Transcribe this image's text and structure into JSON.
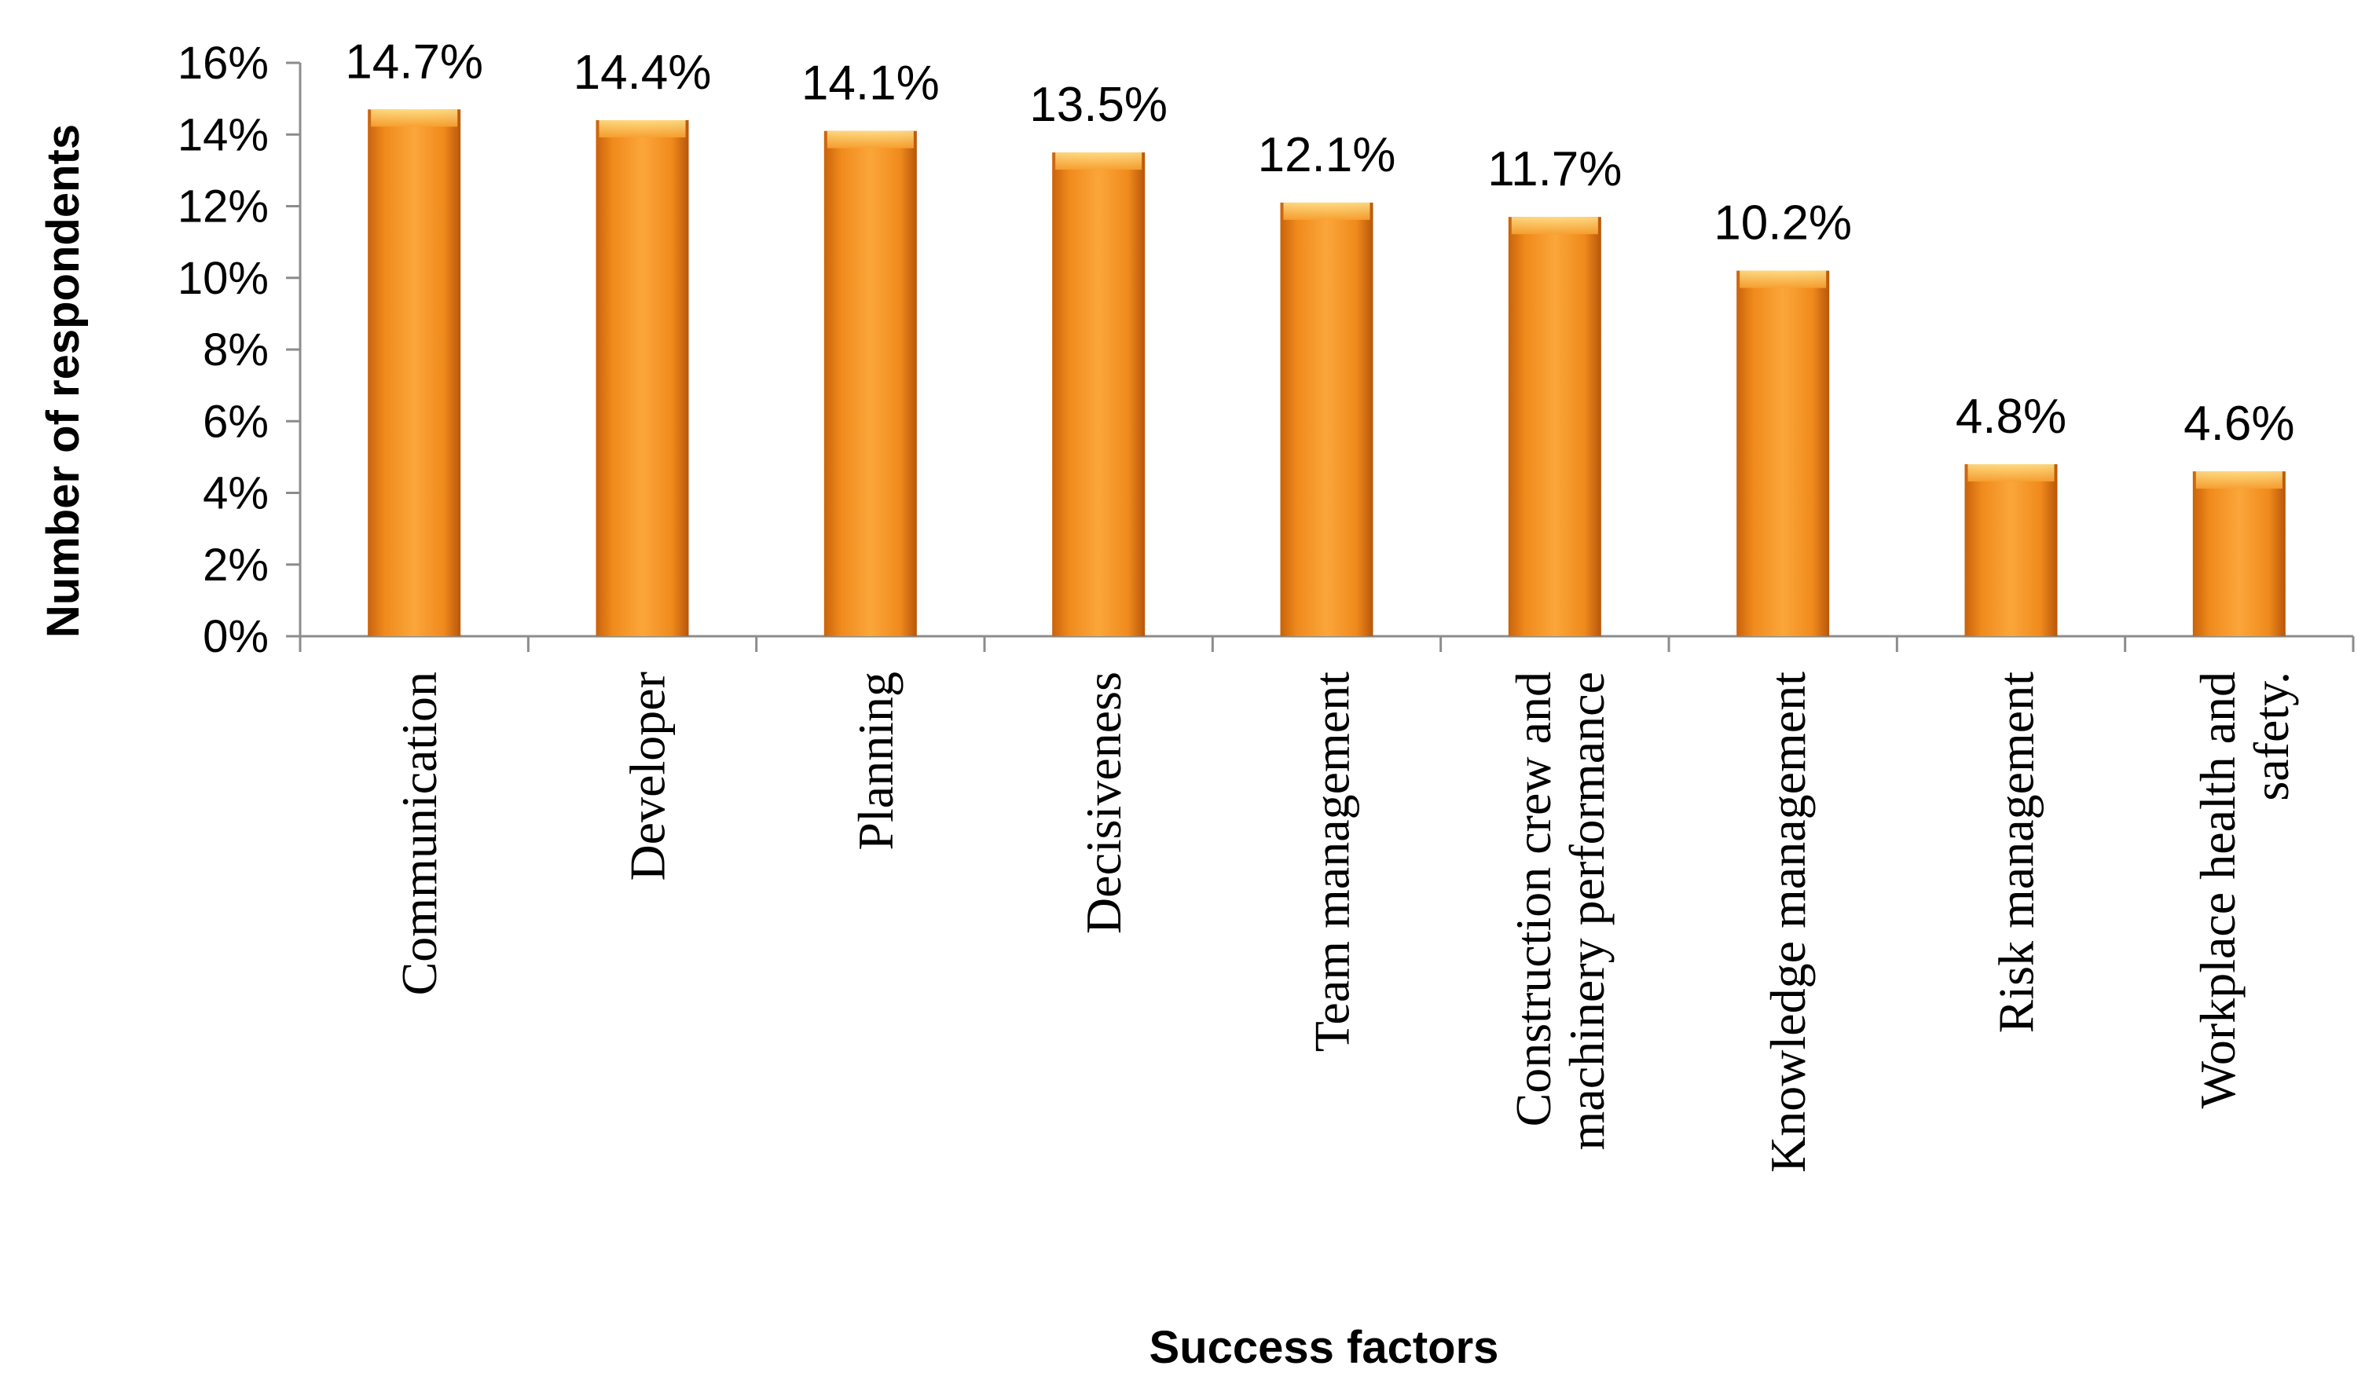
{
  "chart_data": {
    "type": "bar",
    "title": "",
    "xlabel": "Success factors",
    "ylabel": "Number of respondents",
    "ylim": [
      0,
      16
    ],
    "yticks": [
      0,
      2,
      4,
      6,
      8,
      10,
      12,
      14,
      16
    ],
    "ytick_labels": [
      "0%",
      "2%",
      "4%",
      "6%",
      "8%",
      "10%",
      "12%",
      "14%",
      "16%"
    ],
    "grid": false,
    "legend": "none",
    "categories": [
      [
        "Communication"
      ],
      [
        "Developer"
      ],
      [
        "Planning"
      ],
      [
        "Decisiveness"
      ],
      [
        "Team management"
      ],
      [
        "Construction crew and",
        "machinery performance"
      ],
      [
        "Knowledge management"
      ],
      [
        "Risk management"
      ],
      [
        "Workplace health and",
        "safety."
      ]
    ],
    "values": [
      14.7,
      14.4,
      14.1,
      13.5,
      12.1,
      11.7,
      10.2,
      4.8,
      4.6
    ],
    "data_labels": [
      "14.7%",
      "14.4%",
      "14.1%",
      "13.5%",
      "12.1%",
      "11.7%",
      "10.2%",
      "4.8%",
      "4.6%"
    ],
    "colors": {
      "bar": "#F7941D",
      "bar_dark": "#C9630B",
      "bar_light": "#FFC25A",
      "axis": "#8C8C8C"
    }
  }
}
